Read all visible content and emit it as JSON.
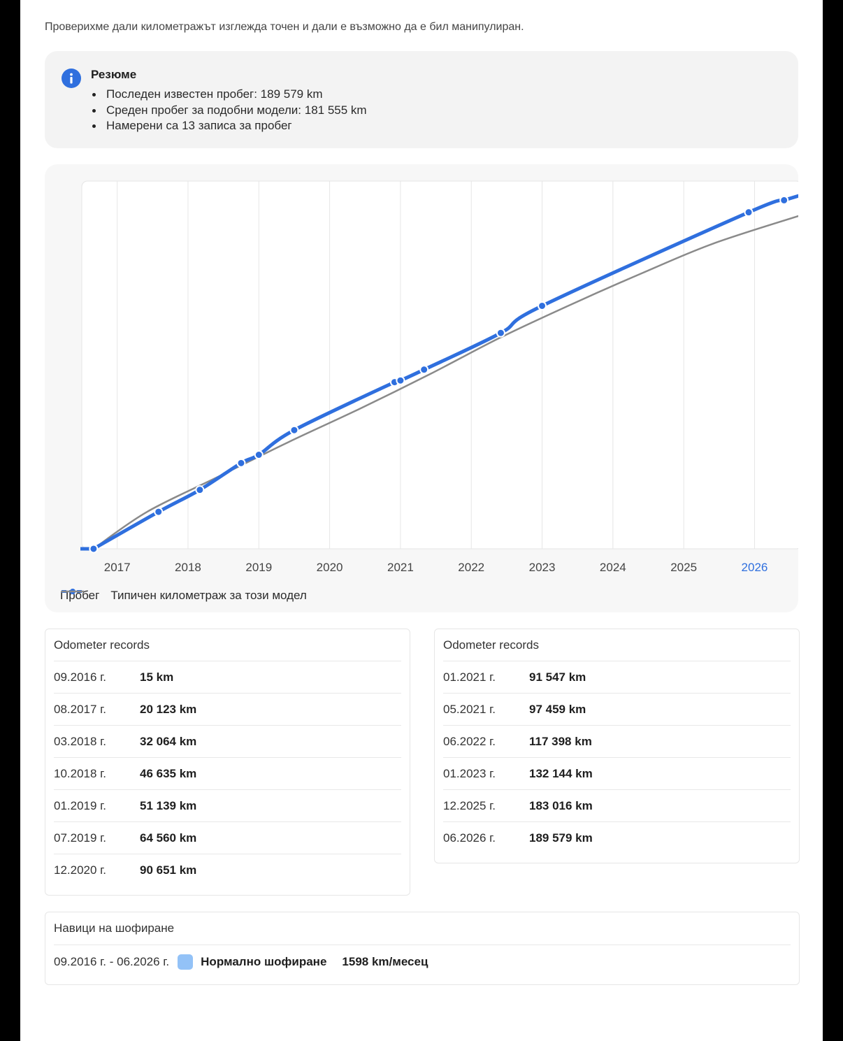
{
  "intro_text": "Проверихме дали километражът изглежда точен и дали е възможно да е бил манипулиран.",
  "summary": {
    "title": "Резюме",
    "items": [
      "Последен известен пробег: 189 579 km",
      "Среден пробег за подобни модели: 181 555 km",
      "Намерени са 13 записа за пробег"
    ]
  },
  "chart_data": {
    "type": "line",
    "x_ticks": [
      "2017",
      "2018",
      "2019",
      "2020",
      "2021",
      "2022",
      "2023",
      "2024",
      "2025",
      "2026"
    ],
    "highlighted_tick": "2026",
    "x_range": [
      "2016-07",
      "2026-09"
    ],
    "y_range": [
      0,
      200000
    ],
    "y_axis_labels_shown": false,
    "grid": "vertical",
    "legend_position": "bottom-left",
    "series": [
      {
        "name": "Пробег",
        "color": "#2f6fde",
        "style": "thick line with point markers",
        "points": [
          {
            "date": "2016-09",
            "value": 15
          },
          {
            "date": "2017-08",
            "value": 20123
          },
          {
            "date": "2018-03",
            "value": 32064
          },
          {
            "date": "2018-10",
            "value": 46635
          },
          {
            "date": "2019-01",
            "value": 51139
          },
          {
            "date": "2019-07",
            "value": 64560
          },
          {
            "date": "2020-12",
            "value": 90651
          },
          {
            "date": "2021-01",
            "value": 91547
          },
          {
            "date": "2021-05",
            "value": 97459
          },
          {
            "date": "2022-06",
            "value": 117398
          },
          {
            "date": "2023-01",
            "value": 132144
          },
          {
            "date": "2025-12",
            "value": 183016
          },
          {
            "date": "2026-06",
            "value": 189579
          }
        ]
      },
      {
        "name": "Типичен километраж за този модел",
        "color": "#8a8a8a",
        "style": "thin line",
        "points": [
          {
            "date": "2016-09",
            "value": 0
          },
          {
            "date": "2017-06",
            "value": 20000
          },
          {
            "date": "2018-06",
            "value": 39000
          },
          {
            "date": "2019-06",
            "value": 58000
          },
          {
            "date": "2020-06",
            "value": 76000
          },
          {
            "date": "2021-06",
            "value": 95000
          },
          {
            "date": "2022-06",
            "value": 115000
          },
          {
            "date": "2023-06",
            "value": 133000
          },
          {
            "date": "2024-06",
            "value": 150000
          },
          {
            "date": "2025-06",
            "value": 166000
          },
          {
            "date": "2026-09",
            "value": 181555
          }
        ]
      }
    ]
  },
  "records_left": {
    "title": "Odometer records",
    "rows": [
      {
        "date": "09.2016 г.",
        "km": "15 km"
      },
      {
        "date": "08.2017 г.",
        "km": "20 123 km"
      },
      {
        "date": "03.2018 г.",
        "km": "32 064 km"
      },
      {
        "date": "10.2018 г.",
        "km": "46 635 km"
      },
      {
        "date": "01.2019 г.",
        "km": "51 139 km"
      },
      {
        "date": "07.2019 г.",
        "km": "64 560 km"
      },
      {
        "date": "12.2020 г.",
        "km": "90 651 km"
      }
    ]
  },
  "records_right": {
    "title": "Odometer records",
    "rows": [
      {
        "date": "01.2021 г.",
        "km": "91 547 km"
      },
      {
        "date": "05.2021 г.",
        "km": "97 459 km"
      },
      {
        "date": "06.2022 г.",
        "km": "117 398 km"
      },
      {
        "date": "01.2023 г.",
        "km": "132 144 km"
      },
      {
        "date": "12.2025 г.",
        "km": "183 016 km"
      },
      {
        "date": "06.2026 г.",
        "km": "189 579 km"
      }
    ]
  },
  "habits": {
    "title": "Навици на шофиране",
    "period": "09.2016 г. - 06.2026 г.",
    "type": "Нормално шофиране",
    "rate": "1598 km/месец",
    "color": "#93c2f7"
  }
}
